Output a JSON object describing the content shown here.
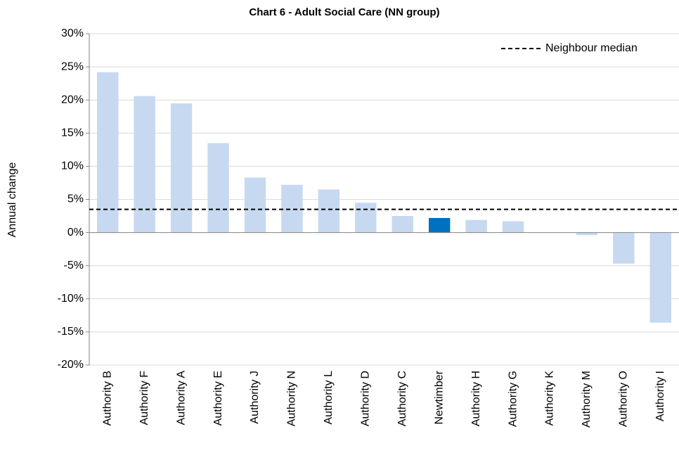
{
  "chart_data": {
    "type": "bar",
    "title": "Chart 6 - Adult Social Care (NN group)",
    "y_label": "Annual change",
    "categories": [
      "Authority B",
      "Authority F",
      "Authority A",
      "Authority E",
      "Authority J",
      "Authority N",
      "Authority L",
      "Authority D",
      "Authority C",
      "Newtimber",
      "Authority H",
      "Authority G",
      "Authority K",
      "Authority M",
      "Authority O",
      "Authority I"
    ],
    "values": [
      24.2,
      20.6,
      19.5,
      13.5,
      8.3,
      7.2,
      6.5,
      4.5,
      2.5,
      2.2,
      1.9,
      1.7,
      0,
      -0.4,
      -4.7,
      -13.6
    ],
    "colors": [
      "#c6d9f1",
      "#c6d9f1",
      "#c6d9f1",
      "#c6d9f1",
      "#c6d9f1",
      "#c6d9f1",
      "#c6d9f1",
      "#c6d9f1",
      "#c6d9f1",
      "#0070c0",
      "#c6d9f1",
      "#c6d9f1",
      "#c6d9f1",
      "#c6d9f1",
      "#c6d9f1",
      "#c6d9f1"
    ],
    "reference_line": {
      "name": "Neighbour median",
      "value": 3.5
    },
    "ylim": [
      -20,
      30
    ],
    "yticks": [
      {
        "value": -20,
        "label": "-20%"
      },
      {
        "value": -15,
        "label": "-15%"
      },
      {
        "value": -10,
        "label": "-10%"
      },
      {
        "value": -5,
        "label": "-5%"
      },
      {
        "value": 0,
        "label": "0%"
      },
      {
        "value": 5,
        "label": "5%"
      },
      {
        "value": 10,
        "label": "10%"
      },
      {
        "value": 15,
        "label": "15%"
      },
      {
        "value": 20,
        "label": "20%"
      },
      {
        "value": 25,
        "label": "25%"
      },
      {
        "value": 30,
        "label": "30%"
      }
    ],
    "grid": true,
    "legend": "top-right"
  }
}
